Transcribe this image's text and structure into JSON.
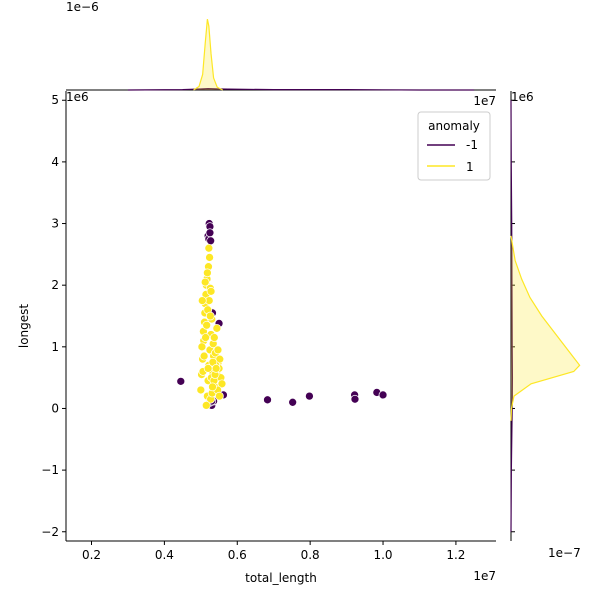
{
  "chart_data": {
    "type": "scatter",
    "title": "",
    "xlabel": "total_length",
    "ylabel": "longest",
    "x_offset_text": "1e7",
    "y_offset_text": "1e6",
    "xlim": [
      0.13,
      1.31
    ],
    "ylim": [
      -2.15,
      5.15
    ],
    "x_ticks": [
      0.2,
      0.4,
      0.6,
      0.8,
      1.0,
      1.2
    ],
    "y_ticks": [
      -2,
      -1,
      0,
      1,
      2,
      3,
      4,
      5
    ],
    "x_tick_labels": [
      "0.2",
      "0.4",
      "0.6",
      "0.8",
      "1.0",
      "1.2"
    ],
    "y_tick_labels": [
      "−2",
      "−1",
      "0",
      "1",
      "2",
      "3",
      "4",
      "5"
    ],
    "grid": false,
    "legend": {
      "title": "anomaly",
      "placement": "top-right",
      "entries": [
        {
          "label": "-1",
          "color": "#440154"
        },
        {
          "label": "1",
          "color": "#fde725"
        }
      ]
    },
    "series": [
      {
        "name": "-1",
        "color": "#440154",
        "x": [
          0.445,
          0.52,
          0.522,
          0.523,
          0.525,
          0.527,
          0.53,
          0.532,
          0.535,
          0.55,
          0.562,
          0.683,
          0.752,
          0.798,
          0.922,
          0.923,
          0.983,
          1.0,
          0.525,
          0.53,
          0.525
        ],
        "y": [
          0.44,
          2.8,
          2.75,
          3.0,
          2.95,
          2.72,
          0.05,
          1.55,
          0.12,
          1.38,
          0.22,
          0.14,
          0.1,
          0.2,
          0.22,
          0.15,
          0.26,
          0.22,
          0.1,
          0.12,
          2.85
        ]
      },
      {
        "name": "1",
        "color": "#fde725",
        "x": [
          0.5,
          0.502,
          0.505,
          0.508,
          0.51,
          0.512,
          0.515,
          0.518,
          0.52,
          0.522,
          0.525,
          0.528,
          0.53,
          0.532,
          0.535,
          0.538,
          0.54,
          0.545,
          0.548,
          0.55,
          0.552,
          0.555,
          0.558,
          0.503,
          0.507,
          0.511,
          0.514,
          0.517,
          0.521,
          0.524,
          0.527,
          0.531,
          0.534,
          0.537,
          0.541,
          0.544,
          0.547,
          0.506,
          0.509,
          0.513,
          0.516,
          0.519,
          0.523,
          0.526,
          0.529,
          0.533,
          0.536,
          0.539,
          0.542,
          0.546,
          0.551,
          0.504,
          0.518,
          0.522,
          0.528,
          0.532,
          0.515,
          0.52,
          0.526,
          0.512
        ],
        "y": [
          0.3,
          0.55,
          0.8,
          1.1,
          1.4,
          1.7,
          2.0,
          0.2,
          0.45,
          0.7,
          0.95,
          1.2,
          1.45,
          0.6,
          0.85,
          0.35,
          0.9,
          0.55,
          0.75,
          0.65,
          0.8,
          0.5,
          0.4,
          1.0,
          1.25,
          1.55,
          1.85,
          2.1,
          2.3,
          2.45,
          0.15,
          0.25,
          1.05,
          1.15,
          0.7,
          1.3,
          0.95,
          0.6,
          0.85,
          1.15,
          1.35,
          1.6,
          1.75,
          1.95,
          0.5,
          0.75,
          0.45,
          0.55,
          0.65,
          0.3,
          0.2,
          1.75,
          2.2,
          2.6,
          1.9,
          0.35,
          0.05,
          0.65,
          1.5,
          2.05
        ]
      }
    ],
    "marginal_x": {
      "offset_text": "1e−6",
      "series": [
        {
          "name": "-1",
          "color": "#440154",
          "x": [
            0.3,
            0.45,
            0.5,
            0.52,
            0.55,
            0.7,
            0.9,
            1.1,
            1.25
          ],
          "density": [
            0.0,
            0.01,
            0.03,
            0.04,
            0.03,
            0.01,
            0.01,
            0.0,
            0.0
          ]
        },
        {
          "name": "1",
          "color": "#fde725",
          "x": [
            0.48,
            0.495,
            0.505,
            0.512,
            0.518,
            0.522,
            0.528,
            0.535,
            0.545,
            0.56
          ],
          "density": [
            0.0,
            0.1,
            0.45,
            1.35,
            2.05,
            1.85,
            1.05,
            0.35,
            0.08,
            0.0
          ]
        }
      ]
    },
    "marginal_y": {
      "offset_text": "1e−7",
      "series": [
        {
          "name": "-1",
          "color": "#440154",
          "y": [
            -2.0,
            -1.0,
            0.0,
            0.5,
            1.0,
            2.0,
            3.0,
            4.0,
            5.0
          ],
          "density": [
            0.0,
            0.03,
            0.1,
            0.12,
            0.1,
            0.08,
            0.06,
            0.02,
            0.0
          ]
        },
        {
          "name": "1",
          "color": "#fde725",
          "y": [
            -0.2,
            0.0,
            0.2,
            0.4,
            0.6,
            0.7,
            0.9,
            1.2,
            1.5,
            1.8,
            2.1,
            2.4,
            2.8
          ],
          "density": [
            0.0,
            0.04,
            0.25,
            1.7,
            5.3,
            5.8,
            5.0,
            3.8,
            2.6,
            1.6,
            0.9,
            0.35,
            0.0
          ]
        }
      ]
    }
  }
}
